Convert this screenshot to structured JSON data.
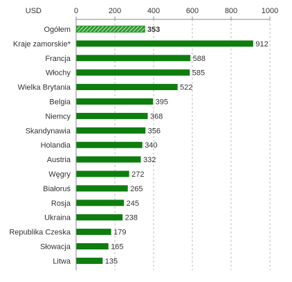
{
  "chart_data": {
    "type": "bar",
    "orientation": "horizontal",
    "unit_label": "USD",
    "xlim": [
      0,
      1000
    ],
    "x_ticks": [
      0,
      200,
      400,
      600,
      800,
      1000
    ],
    "grid": "vertical dashed",
    "categories": [
      "Ogółem",
      "Kraje zamorskie*",
      "Francja",
      "Włochy",
      "Wielka Brytania",
      "Belgia",
      "Niemcy",
      "Skandynawia",
      "Holandia",
      "Austria",
      "Węgry",
      "Białoruś",
      "Rosja",
      "Ukraina",
      "Republika Czeska",
      "Słowacja",
      "Litwa"
    ],
    "values": [
      353,
      912,
      588,
      585,
      522,
      395,
      368,
      356,
      340,
      332,
      272,
      265,
      245,
      238,
      179,
      165,
      135
    ],
    "highlight_index": 0,
    "colors": {
      "bar": "#0d7e0d",
      "highlight_bar": "#2f9a2f",
      "highlight_hatch": "#cfe8cf",
      "grid": "#bdbdbd",
      "axis": "#888888",
      "text": "#333333"
    }
  }
}
